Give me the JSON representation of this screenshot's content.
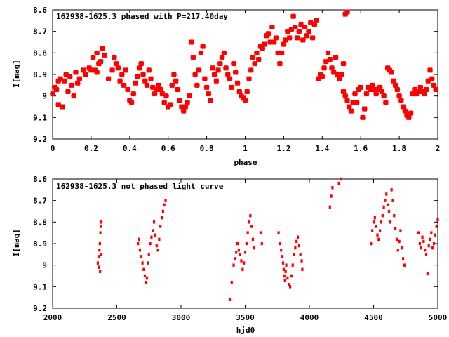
{
  "chart_data": [
    {
      "type": "scatter",
      "title": "162938-1625.3 phased with P=217.40day",
      "xlabel": "phase",
      "ylabel": "I[mag]",
      "xlim": [
        0,
        2
      ],
      "ylim": [
        9.2,
        8.6
      ],
      "y_inverted": true,
      "x_ticks": [
        0,
        0.2,
        0.4,
        0.6,
        0.8,
        1,
        1.2,
        1.4,
        1.6,
        1.8,
        2
      ],
      "x_tick_labels": [
        "0",
        "0.2",
        "0.4",
        "0.6",
        "0.8",
        "1",
        "1.2",
        "1.4",
        "1.6",
        "1.8",
        "2"
      ],
      "y_ticks": [
        8.6,
        8.7,
        8.8,
        8.9,
        9,
        9.1,
        9.2
      ],
      "y_tick_labels": [
        "8.6",
        "8.7",
        "8.8",
        "8.9",
        "9",
        "9.1",
        "9.2"
      ],
      "grid": false,
      "marker_color": "#ff0000",
      "points": [
        [
          0.0,
          8.99
        ],
        [
          0.01,
          8.96
        ],
        [
          0.02,
          8.97
        ],
        [
          0.03,
          8.93
        ],
        [
          0.04,
          8.92
        ],
        [
          0.03,
          9.04
        ],
        [
          0.05,
          9.05
        ],
        [
          0.06,
          8.93
        ],
        [
          0.07,
          8.9
        ],
        [
          0.09,
          8.91
        ],
        [
          0.08,
          8.98
        ],
        [
          0.1,
          8.95
        ],
        [
          0.11,
          9.0
        ],
        [
          0.13,
          8.94
        ],
        [
          0.14,
          8.92
        ],
        [
          0.12,
          8.89
        ],
        [
          0.16,
          8.88
        ],
        [
          0.17,
          8.9
        ],
        [
          0.19,
          8.87
        ],
        [
          0.2,
          8.88
        ],
        [
          0.22,
          8.88
        ],
        [
          0.23,
          8.89
        ],
        [
          0.24,
          8.85
        ],
        [
          0.21,
          8.82
        ],
        [
          0.23,
          8.8
        ],
        [
          0.25,
          8.84
        ],
        [
          0.26,
          8.78
        ],
        [
          0.27,
          8.81
        ],
        [
          0.29,
          8.92
        ],
        [
          0.31,
          8.88
        ],
        [
          0.32,
          8.82
        ],
        [
          0.33,
          8.85
        ],
        [
          0.34,
          8.87
        ],
        [
          0.35,
          8.93
        ],
        [
          0.36,
          8.9
        ],
        [
          0.37,
          8.95
        ],
        [
          0.38,
          8.88
        ],
        [
          0.39,
          8.97
        ],
        [
          0.4,
          9.02
        ],
        [
          0.41,
          9.03
        ],
        [
          0.42,
          8.99
        ],
        [
          0.43,
          8.94
        ],
        [
          0.44,
          8.91
        ],
        [
          0.45,
          8.87
        ],
        [
          0.46,
          8.85
        ],
        [
          0.47,
          8.9
        ],
        [
          0.48,
          8.93
        ],
        [
          0.49,
          8.95
        ],
        [
          0.5,
          8.88
        ],
        [
          0.51,
          8.92
        ],
        [
          0.52,
          8.96
        ],
        [
          0.53,
          8.99
        ],
        [
          0.54,
          8.97
        ],
        [
          0.55,
          8.95
        ],
        [
          0.56,
          8.97
        ],
        [
          0.57,
          8.99
        ],
        [
          0.58,
          9.03
        ],
        [
          0.59,
          9.0
        ],
        [
          0.6,
          9.05
        ],
        [
          0.61,
          9.04
        ],
        [
          0.62,
          8.95
        ],
        [
          0.63,
          8.9
        ],
        [
          0.64,
          8.93
        ],
        [
          0.65,
          8.97
        ],
        [
          0.66,
          9.02
        ],
        [
          0.67,
          9.05
        ],
        [
          0.68,
          9.07
        ],
        [
          0.69,
          9.05
        ],
        [
          0.7,
          9.03
        ],
        [
          0.71,
          9.0
        ],
        [
          0.72,
          8.75
        ],
        [
          0.73,
          8.82
        ],
        [
          0.74,
          8.9
        ],
        [
          0.75,
          8.95
        ],
        [
          0.76,
          8.88
        ],
        [
          0.77,
          8.8
        ],
        [
          0.78,
          8.77
        ],
        [
          0.79,
          8.92
        ],
        [
          0.8,
          8.96
        ],
        [
          0.81,
          8.99
        ],
        [
          0.82,
          9.02
        ],
        [
          0.83,
          8.87
        ],
        [
          0.84,
          8.9
        ],
        [
          0.85,
          8.93
        ],
        [
          0.86,
          8.88
        ],
        [
          0.87,
          8.85
        ],
        [
          0.88,
          8.82
        ],
        [
          0.89,
          8.8
        ],
        [
          0.9,
          8.87
        ],
        [
          0.91,
          8.9
        ],
        [
          0.92,
          8.92
        ],
        [
          0.93,
          8.96
        ],
        [
          0.94,
          8.85
        ],
        [
          0.95,
          8.89
        ],
        [
          0.96,
          8.94
        ],
        [
          0.97,
          8.98
        ],
        [
          0.98,
          9.0
        ],
        [
          0.99,
          9.01
        ],
        [
          1.0,
          9.02
        ],
        [
          1.01,
          8.98
        ],
        [
          1.02,
          8.92
        ],
        [
          1.03,
          8.88
        ],
        [
          1.04,
          8.82
        ],
        [
          1.05,
          8.85
        ],
        [
          1.06,
          8.8
        ],
        [
          1.07,
          8.83
        ],
        [
          1.08,
          8.77
        ],
        [
          1.09,
          8.78
        ],
        [
          1.1,
          8.76
        ],
        [
          1.11,
          8.72
        ],
        [
          1.12,
          8.71
        ],
        [
          1.13,
          8.75
        ],
        [
          1.14,
          8.68
        ],
        [
          1.15,
          8.75
        ],
        [
          1.16,
          8.73
        ],
        [
          1.17,
          8.8
        ],
        [
          1.18,
          8.85
        ],
        [
          1.19,
          8.8
        ],
        [
          1.2,
          8.76
        ],
        [
          1.21,
          8.74
        ],
        [
          1.22,
          8.7
        ],
        [
          1.23,
          8.73
        ],
        [
          1.24,
          8.69
        ],
        [
          1.25,
          8.63
        ],
        [
          1.26,
          8.68
        ],
        [
          1.27,
          8.73
        ],
        [
          1.28,
          8.7
        ],
        [
          1.29,
          8.67
        ],
        [
          1.3,
          8.74
        ],
        [
          1.31,
          8.68
        ],
        [
          1.32,
          8.72
        ],
        [
          1.33,
          8.7
        ],
        [
          1.34,
          8.66
        ],
        [
          1.35,
          8.73
        ],
        [
          1.36,
          8.67
        ],
        [
          1.37,
          8.65
        ],
        [
          1.38,
          8.92
        ],
        [
          1.39,
          8.9
        ],
        [
          1.4,
          8.91
        ],
        [
          1.41,
          8.87
        ],
        [
          1.42,
          8.84
        ],
        [
          1.43,
          8.8
        ],
        [
          1.44,
          8.83
        ],
        [
          1.45,
          8.87
        ],
        [
          1.46,
          8.89
        ],
        [
          1.47,
          8.82
        ],
        [
          1.48,
          8.9
        ],
        [
          1.49,
          8.92
        ],
        [
          1.5,
          8.9
        ],
        [
          1.51,
          8.85
        ],
        [
          1.52,
          8.62
        ],
        [
          1.53,
          8.61
        ],
        [
          1.51,
          8.98
        ],
        [
          1.52,
          9.0
        ],
        [
          1.53,
          9.02
        ],
        [
          1.54,
          9.05
        ],
        [
          1.55,
          9.07
        ],
        [
          1.56,
          9.03
        ],
        [
          1.57,
          8.99
        ],
        [
          1.58,
          9.03
        ],
        [
          1.59,
          8.97
        ],
        [
          1.6,
          8.96
        ],
        [
          1.61,
          9.1
        ],
        [
          1.62,
          9.06
        ],
        [
          1.63,
          8.99
        ],
        [
          1.64,
          8.96
        ],
        [
          1.65,
          8.97
        ],
        [
          1.66,
          8.95
        ],
        [
          1.67,
          8.97
        ],
        [
          1.68,
          8.99
        ],
        [
          1.69,
          8.97
        ],
        [
          1.7,
          8.96
        ],
        [
          1.71,
          8.98
        ],
        [
          1.72,
          9.0
        ],
        [
          1.73,
          9.03
        ],
        [
          1.74,
          8.87
        ],
        [
          1.75,
          8.88
        ],
        [
          1.76,
          8.89
        ],
        [
          1.77,
          8.93
        ],
        [
          1.78,
          8.95
        ],
        [
          1.79,
          8.97
        ],
        [
          1.8,
          9.0
        ],
        [
          1.81,
          9.02
        ],
        [
          1.82,
          9.05
        ],
        [
          1.83,
          9.07
        ],
        [
          1.84,
          9.09
        ],
        [
          1.85,
          9.1
        ],
        [
          1.86,
          9.08
        ],
        [
          1.87,
          8.99
        ],
        [
          1.88,
          8.97
        ],
        [
          1.89,
          8.99
        ],
        [
          1.9,
          8.98
        ],
        [
          1.91,
          8.96
        ],
        [
          1.92,
          8.98
        ],
        [
          1.93,
          8.99
        ],
        [
          1.94,
          8.97
        ],
        [
          1.95,
          8.93
        ],
        [
          1.96,
          8.88
        ],
        [
          1.97,
          8.92
        ],
        [
          1.98,
          8.95
        ],
        [
          1.99,
          8.97
        ]
      ]
    },
    {
      "type": "scatter",
      "title": "162938-1625.3 not phased light curve",
      "xlabel": "hjd0",
      "ylabel": "I[mag]",
      "xlim": [
        2000,
        5000
      ],
      "ylim": [
        9.2,
        8.6
      ],
      "y_inverted": true,
      "x_ticks": [
        2000,
        2500,
        3000,
        3500,
        4000,
        4500,
        5000
      ],
      "x_tick_labels": [
        "2000",
        "2500",
        "3000",
        "3500",
        "4000",
        "4500",
        "5000"
      ],
      "y_ticks": [
        8.6,
        8.7,
        8.8,
        8.9,
        9,
        9.1,
        9.2
      ],
      "y_tick_labels": [
        "8.6",
        "8.7",
        "8.8",
        "8.9",
        "9",
        "9.1",
        "9.2"
      ],
      "grid": false,
      "marker_color": "#ff0000",
      "points": [
        [
          2352,
          8.99
        ],
        [
          2358,
          9.01
        ],
        [
          2362,
          8.96
        ],
        [
          2365,
          8.93
        ],
        [
          2368,
          8.9
        ],
        [
          2372,
          8.85
        ],
        [
          2376,
          8.82
        ],
        [
          2380,
          8.8
        ],
        [
          2370,
          9.03
        ],
        [
          2380,
          8.95
        ],
        [
          2665,
          8.9
        ],
        [
          2672,
          8.88
        ],
        [
          2680,
          8.93
        ],
        [
          2690,
          8.96
        ],
        [
          2700,
          8.99
        ],
        [
          2710,
          9.02
        ],
        [
          2718,
          9.05
        ],
        [
          2725,
          9.08
        ],
        [
          2735,
          9.06
        ],
        [
          2742,
          8.99
        ],
        [
          2750,
          8.95
        ],
        [
          2760,
          8.9
        ],
        [
          2770,
          8.87
        ],
        [
          2780,
          8.84
        ],
        [
          2790,
          8.8
        ],
        [
          2800,
          8.86
        ],
        [
          2810,
          8.91
        ],
        [
          2820,
          8.93
        ],
        [
          2830,
          8.88
        ],
        [
          2840,
          8.82
        ],
        [
          2850,
          8.78
        ],
        [
          2860,
          8.75
        ],
        [
          2870,
          8.72
        ],
        [
          2880,
          8.7
        ],
        [
          3380,
          9.16
        ],
        [
          3395,
          9.08
        ],
        [
          3410,
          9.0
        ],
        [
          3420,
          8.97
        ],
        [
          3430,
          8.94
        ],
        [
          3440,
          8.9
        ],
        [
          3450,
          8.93
        ],
        [
          3460,
          8.95
        ],
        [
          3470,
          8.98
        ],
        [
          3480,
          9.02
        ],
        [
          3490,
          8.99
        ],
        [
          3500,
          8.94
        ],
        [
          3510,
          8.9
        ],
        [
          3520,
          8.85
        ],
        [
          3530,
          8.8
        ],
        [
          3540,
          8.77
        ],
        [
          3550,
          8.82
        ],
        [
          3560,
          8.88
        ],
        [
          3570,
          8.92
        ],
        [
          3620,
          8.85
        ],
        [
          3630,
          8.9
        ],
        [
          3760,
          8.85
        ],
        [
          3770,
          8.9
        ],
        [
          3780,
          8.93
        ],
        [
          3790,
          8.96
        ],
        [
          3795,
          8.99
        ],
        [
          3800,
          9.02
        ],
        [
          3805,
          9.05
        ],
        [
          3810,
          9.07
        ],
        [
          3815,
          9.03
        ],
        [
          3820,
          9.0
        ],
        [
          3830,
          9.06
        ],
        [
          3840,
          9.09
        ],
        [
          3850,
          9.1
        ],
        [
          3860,
          9.05
        ],
        [
          3870,
          9.0
        ],
        [
          3880,
          8.95
        ],
        [
          3890,
          8.92
        ],
        [
          3900,
          8.89
        ],
        [
          3910,
          8.87
        ],
        [
          3920,
          8.91
        ],
        [
          3930,
          8.95
        ],
        [
          3940,
          8.98
        ],
        [
          3945,
          9.02
        ],
        [
          4160,
          8.73
        ],
        [
          4170,
          8.68
        ],
        [
          4180,
          8.64
        ],
        [
          4230,
          8.62
        ],
        [
          4245,
          8.6
        ],
        [
          4480,
          8.9
        ],
        [
          4490,
          8.84
        ],
        [
          4500,
          8.8
        ],
        [
          4510,
          8.78
        ],
        [
          4520,
          8.82
        ],
        [
          4530,
          8.86
        ],
        [
          4540,
          8.88
        ],
        [
          4550,
          8.84
        ],
        [
          4560,
          8.8
        ],
        [
          4570,
          8.77
        ],
        [
          4580,
          8.73
        ],
        [
          4590,
          8.7
        ],
        [
          4600,
          8.67
        ],
        [
          4610,
          8.72
        ],
        [
          4620,
          8.75
        ],
        [
          4630,
          8.8
        ],
        [
          4640,
          8.65
        ],
        [
          4650,
          8.7
        ],
        [
          4660,
          8.77
        ],
        [
          4670,
          8.83
        ],
        [
          4680,
          8.88
        ],
        [
          4690,
          8.93
        ],
        [
          4700,
          8.89
        ],
        [
          4710,
          8.84
        ],
        [
          4720,
          8.92
        ],
        [
          4730,
          8.97
        ],
        [
          4740,
          9.0
        ],
        [
          4850,
          8.85
        ],
        [
          4860,
          8.9
        ],
        [
          4870,
          8.92
        ],
        [
          4880,
          8.87
        ],
        [
          4890,
          8.89
        ],
        [
          4900,
          8.93
        ],
        [
          4910,
          8.95
        ],
        [
          4920,
          9.04
        ],
        [
          4930,
          8.91
        ],
        [
          4940,
          8.88
        ],
        [
          4950,
          8.85
        ],
        [
          4960,
          8.92
        ],
        [
          4970,
          8.9
        ],
        [
          4980,
          8.86
        ],
        [
          4990,
          8.82
        ],
        [
          5000,
          8.79
        ]
      ]
    }
  ]
}
